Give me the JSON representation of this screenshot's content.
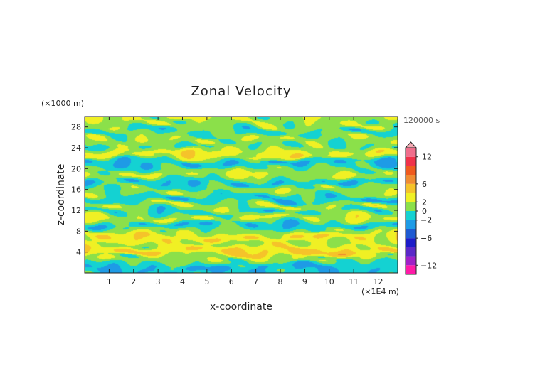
{
  "chart_data": {
    "type": "heatmap",
    "title": "Zonal Velocity",
    "xlabel": "x-coordinate",
    "ylabel": "z-coordinate",
    "x_unit": "(×1E4 m)",
    "y_unit": "(×1000 m)",
    "time_label": "120000 s",
    "xlim": [
      0,
      12.8
    ],
    "ylim": [
      0,
      30
    ],
    "x_ticks": [
      "1",
      "2",
      "3",
      "4",
      "5",
      "6",
      "7",
      "8",
      "9",
      "10",
      "11",
      "12"
    ],
    "y_ticks": [
      "4",
      "8",
      "12",
      "16",
      "20",
      "24",
      "28"
    ],
    "colorbar": {
      "tick_labels": [
        "12",
        "6",
        "2",
        "0",
        "−2",
        "−6",
        "−12"
      ],
      "levels": [
        -14,
        -12,
        -10,
        -8,
        -6,
        -4,
        -2,
        0,
        2,
        4,
        6,
        8,
        10,
        12,
        14
      ],
      "colors": [
        "#ff1aa8",
        "#a020c8",
        "#5a28c8",
        "#1c1cc8",
        "#1e5ad2",
        "#1e9be6",
        "#14d2d2",
        "#8be04a",
        "#f0f024",
        "#f5c32a",
        "#f08c32",
        "#f05a1e",
        "#f0324a",
        "#f06e8c",
        "#f5aab4"
      ]
    },
    "bands": [
      {
        "z": 1.2,
        "v": -1.5
      },
      {
        "z": 2.5,
        "v": 1
      },
      {
        "z": 4.5,
        "v": 4
      },
      {
        "z": 5.5,
        "v": 1.5
      },
      {
        "z": 6.8,
        "v": 3.5
      },
      {
        "z": 8.0,
        "v": 1
      },
      {
        "z": 9.3,
        "v": -1.5
      },
      {
        "z": 10.5,
        "v": 2.5
      },
      {
        "z": 11.6,
        "v": -1
      },
      {
        "z": 12.8,
        "v": 2
      },
      {
        "z": 14.2,
        "v": -1.5
      },
      {
        "z": 15.8,
        "v": 1
      },
      {
        "z": 17.6,
        "v": -1.5
      },
      {
        "z": 18.6,
        "v": 2
      },
      {
        "z": 19.8,
        "v": 0.5
      },
      {
        "z": 21.0,
        "v": -1.5
      },
      {
        "z": 22.8,
        "v": 2.5
      },
      {
        "z": 24.5,
        "v": 0.5
      },
      {
        "z": 25.5,
        "v": 1.5
      },
      {
        "z": 27.0,
        "v": -0.5
      },
      {
        "z": 28.5,
        "v": 1.5
      }
    ]
  }
}
